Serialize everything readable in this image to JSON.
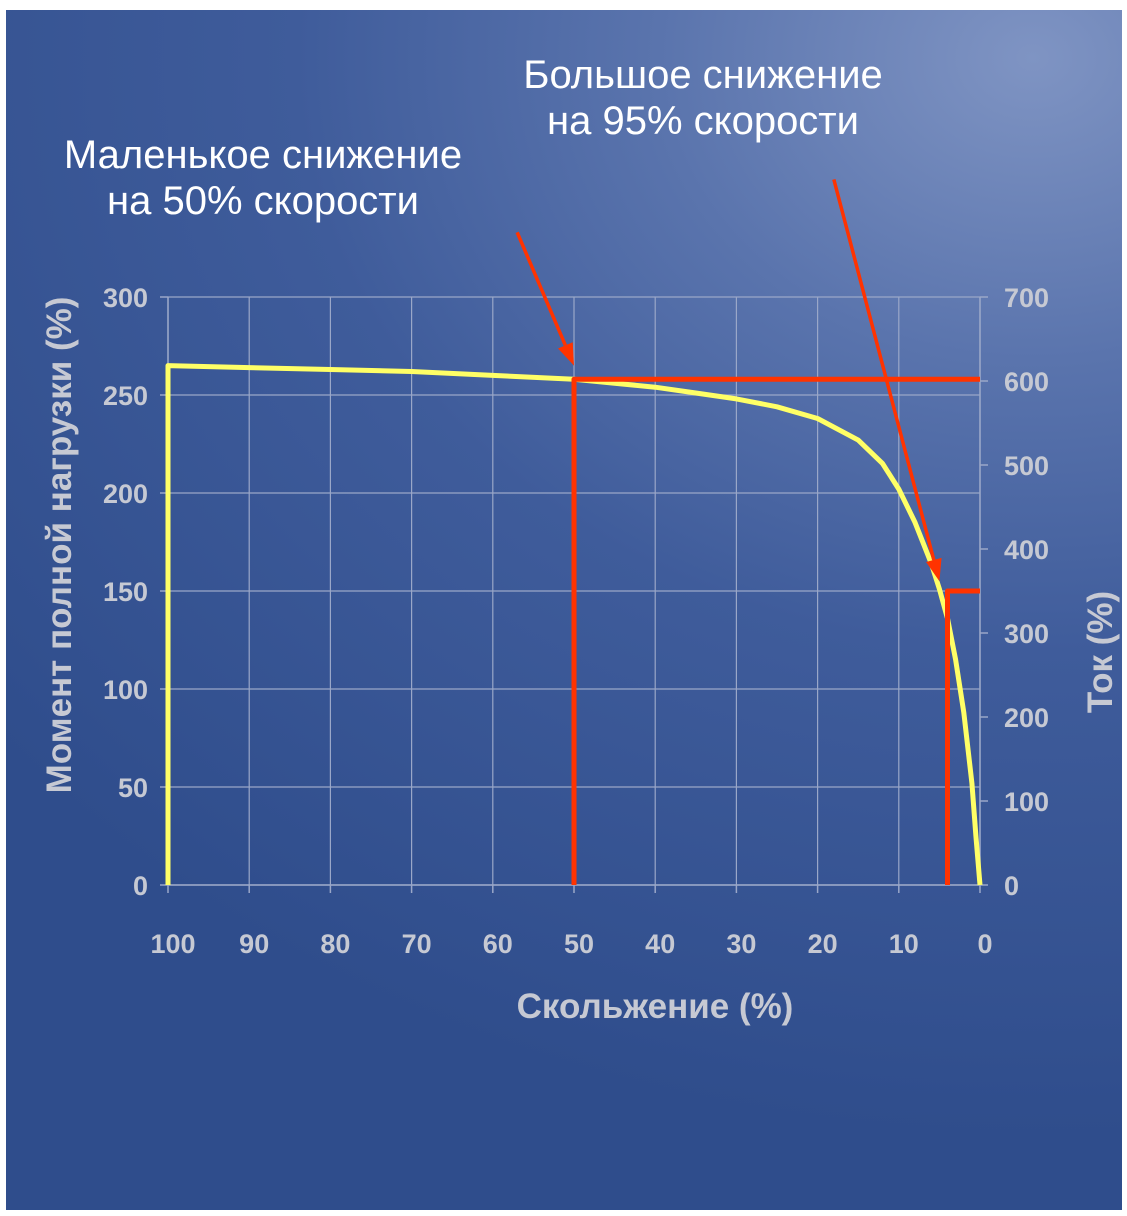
{
  "annotations": {
    "left_line1": "Маленькое снижение",
    "left_line2": "на 50% скорости",
    "right_line1": "Большое снижение",
    "right_line2": "на 95% скорости"
  },
  "chart_data": {
    "type": "line",
    "xlabel": "Скольжение (%)",
    "ylabel": "Момент полной нагрузки  (%)",
    "y2label": "Ток (%)",
    "x_reversed": true,
    "xlim": [
      100,
      0
    ],
    "ylim": [
      0,
      300
    ],
    "y2lim": [
      0,
      700
    ],
    "x_ticks": [
      100,
      90,
      80,
      70,
      60,
      50,
      40,
      30,
      20,
      10,
      0
    ],
    "y_ticks": [
      0,
      50,
      100,
      150,
      200,
      250,
      300
    ],
    "y2_ticks": [
      0,
      100,
      200,
      300,
      400,
      500,
      600,
      700
    ],
    "grid": true,
    "colors": {
      "curve": "#ffff66",
      "reduction": "#ff3300",
      "arrow": "#ff3300",
      "grid": "#9aa7c8",
      "text": "#c6c9d3"
    },
    "series": [
      {
        "x": [
          100,
          90,
          80,
          70,
          60,
          50,
          45,
          40,
          35,
          30,
          25,
          20,
          15,
          12,
          10,
          8,
          6,
          5,
          4,
          3,
          2,
          1,
          0.5,
          0
        ],
        "y": [
          265,
          264,
          263,
          262,
          260,
          258,
          256,
          254,
          251,
          248,
          244,
          238,
          227,
          215,
          202,
          185,
          164,
          151,
          136,
          115,
          88,
          52,
          25,
          0
        ],
        "start_y": 0
      },
      {
        "x": [
          50,
          50,
          0
        ],
        "y": [
          0,
          258,
          258
        ]
      },
      {
        "x": [
          4,
          4,
          0
        ],
        "y": [
          0,
          150,
          150
        ]
      }
    ],
    "arrows": [
      {
        "from": [
          57,
          333
        ],
        "to": [
          50,
          265
        ]
      },
      {
        "from": [
          18,
          360
        ],
        "to": [
          5,
          155
        ]
      }
    ]
  }
}
